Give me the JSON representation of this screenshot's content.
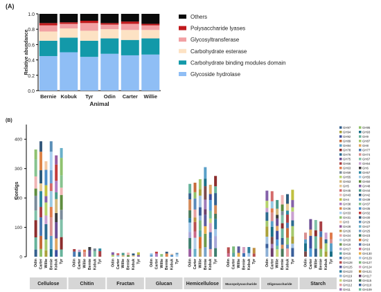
{
  "panel_a_label": "(A)",
  "panel_b_label": "(B)",
  "chart_data": [
    {
      "type": "bar",
      "stacked": true,
      "title": "",
      "xlabel": "Animal",
      "ylabel": "Relative abundance",
      "ylim": [
        0,
        1
      ],
      "yticks": [
        "0.0",
        "0.2",
        "0.4",
        "0.6",
        "0.8",
        "1.0"
      ],
      "categories": [
        "Bernie",
        "Kobuk",
        "Tyr",
        "Odin",
        "Carter",
        "Willie"
      ],
      "legend_position": "right",
      "series": [
        {
          "name": "Glycoside hydrolase",
          "color": "#8fbef5",
          "values": [
            0.45,
            0.5,
            0.44,
            0.48,
            0.46,
            0.47
          ]
        },
        {
          "name": "Carbohydrate binding modules domain",
          "color": "#1399a9",
          "values": [
            0.2,
            0.19,
            0.21,
            0.2,
            0.2,
            0.21
          ]
        },
        {
          "name": "Carbohydrate esterase",
          "color": "#fde2c4",
          "values": [
            0.12,
            0.12,
            0.13,
            0.12,
            0.13,
            0.11
          ]
        },
        {
          "name": "Glycosyltransferase",
          "color": "#f2a0a3",
          "values": [
            0.08,
            0.06,
            0.1,
            0.06,
            0.08,
            0.06
          ]
        },
        {
          "name": "Polysaccharide lyases",
          "color": "#c0191c",
          "values": [
            0.03,
            0.02,
            0.03,
            0.02,
            0.03,
            0.02
          ]
        },
        {
          "name": "Others",
          "color": "#0a0a0a",
          "values": [
            0.12,
            0.11,
            0.09,
            0.12,
            0.1,
            0.13
          ]
        }
      ]
    },
    {
      "type": "bar",
      "stacked": true,
      "title": "",
      "xlabel": "",
      "ylabel": "Contigs",
      "ylim": [
        0,
        450
      ],
      "yticks": [
        "0",
        "100",
        "200",
        "300",
        "400"
      ],
      "animals": [
        "Odin",
        "Carter",
        "Willie",
        "Bernie",
        "Kobuk",
        "Tyr"
      ],
      "groups": [
        {
          "name": "Cellulose",
          "totals": [
            365,
            393,
            325,
            393,
            345,
            370
          ]
        },
        {
          "name": "Chitin",
          "totals": [
            26,
            24,
            24,
            33,
            28,
            28
          ]
        },
        {
          "name": "Fructan",
          "totals": [
            15,
            12,
            13,
            14,
            11,
            15
          ]
        },
        {
          "name": "Glucan",
          "totals": [
            12,
            17,
            9,
            17,
            10,
            13
          ]
        },
        {
          "name": "Hemicellulose",
          "totals": [
            248,
            252,
            264,
            305,
            245,
            275
          ]
        },
        {
          "name": "Mucopolysaccharide",
          "totals": [
            32,
            35,
            35,
            33,
            33,
            30
          ]
        },
        {
          "name": "Oligosaccharide",
          "totals": [
            225,
            223,
            193,
            210,
            213,
            228
          ]
        },
        {
          "name": "Starch",
          "totals": [
            82,
            128,
            125,
            120,
            82,
            82
          ]
        }
      ],
      "legend": [
        "GH97",
        "GH95",
        "GH94",
        "GH93",
        "GH92",
        "GH9",
        "GH89",
        "GH87",
        "GH84",
        "GH8",
        "GH78",
        "GH77",
        "GH76",
        "GH74",
        "GH75",
        "GH67",
        "GH66",
        "GH64",
        "GH63",
        "GH6",
        "GH59",
        "GH57",
        "GH55",
        "GH55",
        "GH53",
        "GH50",
        "GH5",
        "GH48",
        "GH45",
        "GH44",
        "GH43",
        "GH42",
        "GH4",
        "GH39",
        "GH38",
        "GH37",
        "GH36",
        "GH35",
        "GH33",
        "GH32",
        "GH31",
        "GH30",
        "GH3",
        "GH29",
        "GH28",
        "GH27",
        "GH26",
        "GH25",
        "GH24",
        "GH23",
        "GH20",
        "GH2",
        "GH19",
        "GH18",
        "GH17",
        "GH16",
        "GH15",
        "GH130",
        "GH13",
        "GH129",
        "GH128",
        "GH127",
        "GH125",
        "GH124",
        "GH123",
        "GH121",
        "GH119",
        "GH117",
        "GH116",
        "GH115",
        "GH112",
        "GH110",
        "GH11",
        "GH109",
        "GH106",
        "GH105",
        "GH101",
        "GH10",
        "GH1"
      ],
      "legend_colors": [
        "#35608d",
        "#91c16a",
        "#aaa13b",
        "#1a6f87",
        "#3f4f9e",
        "#67b39b",
        "#c66a3a",
        "#a5c96d",
        "#5aa0c8",
        "#e0a662",
        "#8c2d2d",
        "#4b7bb4",
        "#2c6b8f",
        "#d98f8f",
        "#6c4e94",
        "#7fc0a8",
        "#a94045",
        "#c9a0d0",
        "#e07b4c",
        "#3d3d3d",
        "#7a8b9a",
        "#2f8aa0",
        "#b6d36b",
        "#99c9e3",
        "#d2b87a",
        "#5f8d3f",
        "#e4c590",
        "#8461a9",
        "#d46a6a",
        "#4a9a8a",
        "#f0b4b4",
        "#2d5a7b",
        "#c0c040",
        "#6a9fd0",
        "#b07cc0",
        "#87c38f",
        "#dd8448",
        "#4c8cc7",
        "#a9d0f0",
        "#c23b3b",
        "#8fc26f",
        "#36597c",
        "#f3c7a1",
        "#5b8fb8",
        "#9a5ca0",
        "#69b0c9",
        "#c4a35a",
        "#77a3c8",
        "#e99fa0",
        "#3f7f6e",
        "#b3cde6",
        "#d86f2e",
        "#6e9a4c",
        "#4f6fa8",
        "#a7a7d8",
        "#c86a8a",
        "#58a5a1",
        "#e8b04c",
        "#3e6fb2",
        "#9ec4e8",
        "#b95050",
        "#7dbb7d",
        "#5c5c9c",
        "#d4a0c0",
        "#2f7f9f",
        "#bf8f3f",
        "#8cb0d6",
        "#6b3f6b",
        "#c9d87a",
        "#4a7a5a",
        "#e6a0a0",
        "#3a5f9a",
        "#9e7ab8",
        "#6fbf9f",
        "#d48a5a",
        "#5a8aba",
        "#a0c0e0",
        "#7a4a4a",
        "#4f9ad6"
      ]
    }
  ]
}
